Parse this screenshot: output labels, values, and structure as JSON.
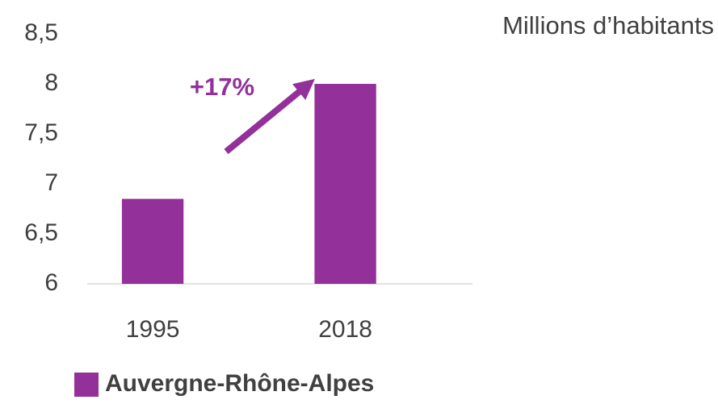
{
  "chart_data": {
    "type": "bar",
    "title": "Millions d’habitants",
    "annotation": "+17%",
    "categories": [
      "1995",
      "2018"
    ],
    "series": [
      {
        "name": "Auvergne-Rhône-Alpes",
        "color": "#93309a",
        "values": [
          6.85,
          8.0
        ]
      }
    ],
    "ylim": [
      6,
      8.5
    ],
    "yticks": [
      6,
      {
        "value": 6.5,
        "label": "6,5"
      },
      7,
      {
        "value": 7.5,
        "label": "7,5"
      },
      8,
      {
        "value": 8.5,
        "label": "8,5"
      }
    ],
    "grid": false,
    "legend": "bottom"
  }
}
